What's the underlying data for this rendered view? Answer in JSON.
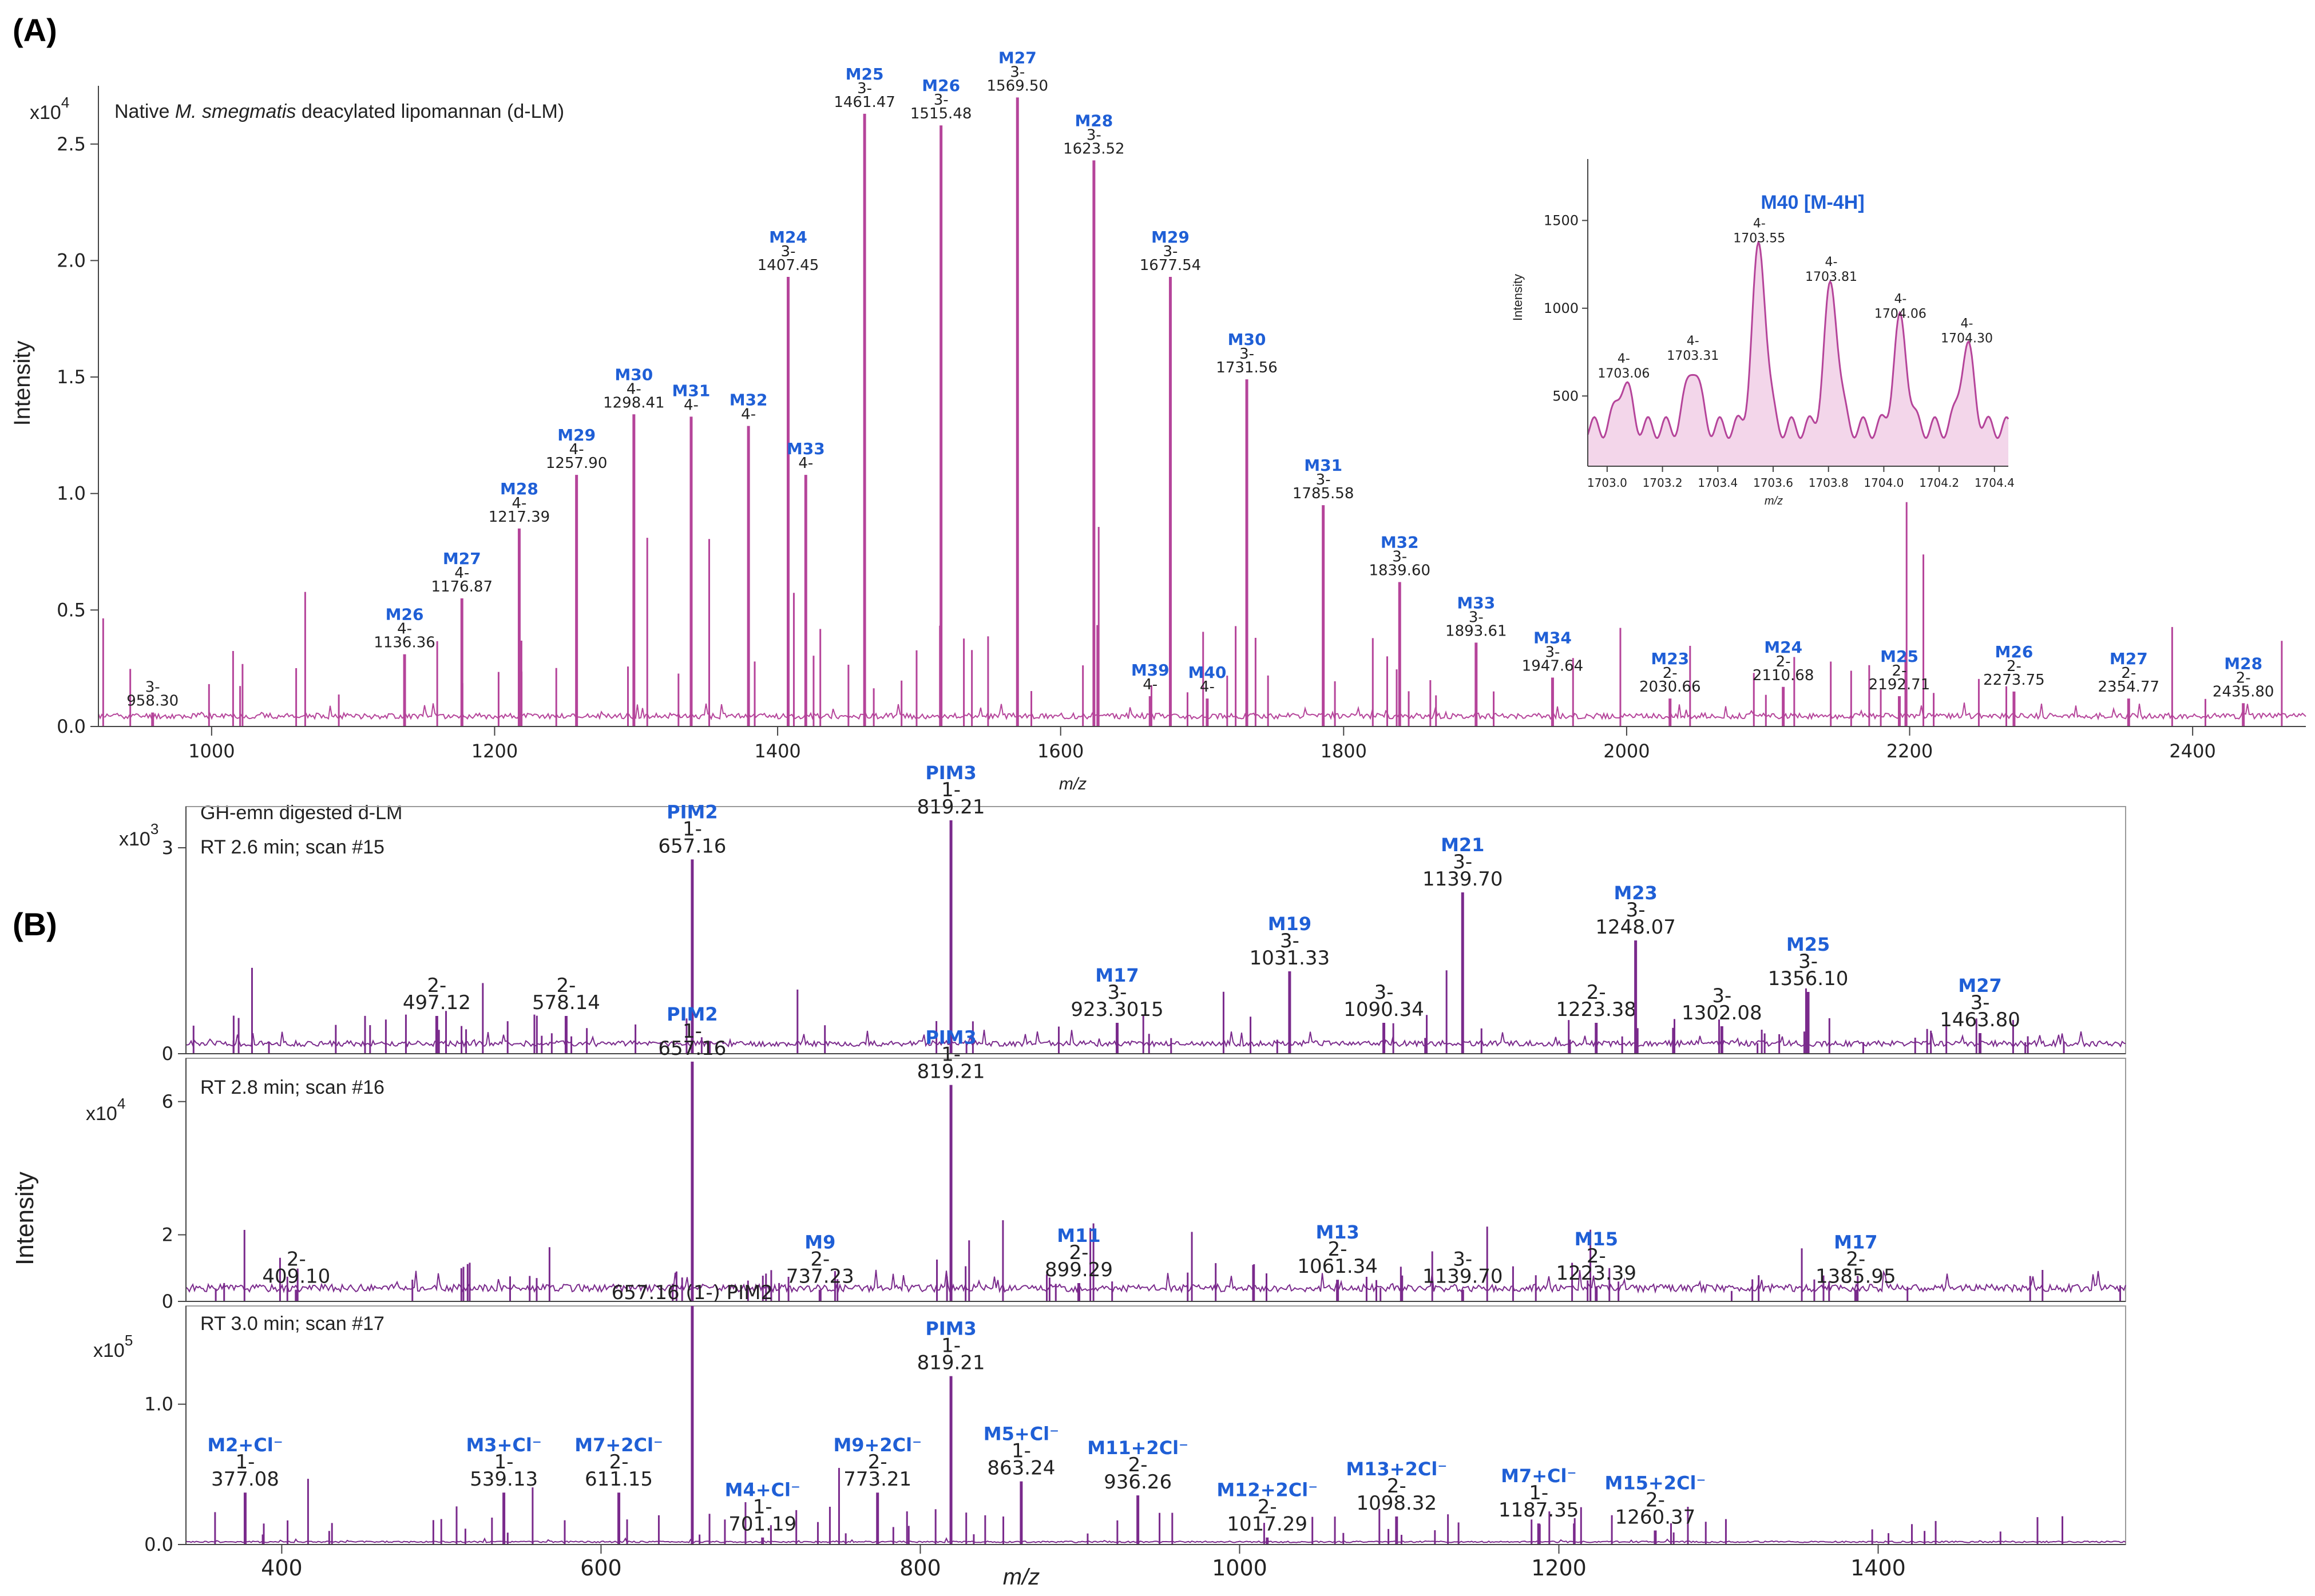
{
  "panel_a": {
    "label": "(A)",
    "title_prefix": "Native ",
    "title_italic": "M. smegmatis",
    "title_suffix": " deacylated lipomannan (d-LM)",
    "y_label": "Intensity",
    "x_label": "m/z",
    "multiplier_base": "x10",
    "multiplier_exp": "4"
  },
  "panel_b": {
    "label": "(B)",
    "y_label": "Intensity",
    "x_label": "m/z",
    "sub1": {
      "line1": "GH-emn digested d-LM",
      "line2": "RT 2.6 min; scan #15",
      "mult_base": "x10",
      "mult_exp": "3"
    },
    "sub2": {
      "line1": "RT 2.8 min; scan #16",
      "mult_base": "x10",
      "mult_exp": "4"
    },
    "sub3": {
      "line1": "RT 3.0 min; scan #17",
      "mult_base": "x10",
      "mult_exp": "5"
    }
  },
  "inset": {
    "title": "M40 [M-4H]",
    "y_label": "Intensity",
    "x_label": "m/z"
  },
  "colors": {
    "panel_a": "#b5449a",
    "panel_b": "#7a2a8c",
    "label_blue": "#1f5fd6",
    "inset_fill": "#f3d6ea"
  },
  "chart_data": [
    {
      "id": "A",
      "type": "line",
      "title": "Native M. smegmatis deacylated lipomannan (d-LM)",
      "xlabel": "m/z",
      "ylabel": "Intensity",
      "y_scale": 10000,
      "xlim": [
        920,
        2480
      ],
      "ylim": [
        0,
        2.75
      ],
      "xticks": [
        1000,
        1200,
        1400,
        1600,
        1800,
        2000,
        2200,
        2400
      ],
      "yticks": [
        0.0,
        0.5,
        1.0,
        1.5,
        2.0,
        2.5
      ],
      "ytick_labels": [
        "0.0",
        "0.5",
        "1.0",
        "1.5",
        "2.0",
        "2.5"
      ],
      "peaks": [
        {
          "mz": 958.3,
          "y": 0.06,
          "name": "",
          "charge": "3-",
          "label": "958.30"
        },
        {
          "mz": 1136.36,
          "y": 0.31,
          "name": "M26",
          "charge": "4-",
          "label": "1136.36"
        },
        {
          "mz": 1176.87,
          "y": 0.55,
          "name": "M27",
          "charge": "4-",
          "label": "1176.87"
        },
        {
          "mz": 1217.39,
          "y": 0.85,
          "name": "M28",
          "charge": "4-",
          "label": "1217.39"
        },
        {
          "mz": 1257.9,
          "y": 1.08,
          "name": "M29",
          "charge": "4-",
          "label": "1257.90"
        },
        {
          "mz": 1298.41,
          "y": 1.34,
          "name": "M30",
          "charge": "4-",
          "label": "1298.41"
        },
        {
          "mz": 1338.9,
          "y": 1.33,
          "name": "M31",
          "charge": "4-",
          "label": ""
        },
        {
          "mz": 1379.4,
          "y": 1.29,
          "name": "M32",
          "charge": "4-",
          "label": ""
        },
        {
          "mz": 1407.45,
          "y": 1.93,
          "name": "M24",
          "charge": "3-",
          "label": "1407.45"
        },
        {
          "mz": 1419.9,
          "y": 1.08,
          "name": "M33",
          "charge": "4-",
          "label": ""
        },
        {
          "mz": 1461.47,
          "y": 2.63,
          "name": "M25",
          "charge": "3-",
          "label": "1461.47"
        },
        {
          "mz": 1515.48,
          "y": 2.58,
          "name": "M26",
          "charge": "3-",
          "label": "1515.48"
        },
        {
          "mz": 1569.5,
          "y": 2.7,
          "name": "M27",
          "charge": "3-",
          "label": "1569.50"
        },
        {
          "mz": 1623.52,
          "y": 2.43,
          "name": "M28",
          "charge": "3-",
          "label": "1623.52"
        },
        {
          "mz": 1663.3,
          "y": 0.13,
          "name": "M39",
          "charge": "4-",
          "label": ""
        },
        {
          "mz": 1677.54,
          "y": 1.93,
          "name": "M29",
          "charge": "3-",
          "label": "1677.54"
        },
        {
          "mz": 1703.6,
          "y": 0.12,
          "name": "M40",
          "charge": "4-",
          "label": ""
        },
        {
          "mz": 1731.56,
          "y": 1.49,
          "name": "M30",
          "charge": "3-",
          "label": "1731.56"
        },
        {
          "mz": 1785.58,
          "y": 0.95,
          "name": "M31",
          "charge": "3-",
          "label": "1785.58"
        },
        {
          "mz": 1839.6,
          "y": 0.62,
          "name": "M32",
          "charge": "3-",
          "label": "1839.60"
        },
        {
          "mz": 1893.61,
          "y": 0.36,
          "name": "M33",
          "charge": "3-",
          "label": "1893.61"
        },
        {
          "mz": 1947.64,
          "y": 0.21,
          "name": "M34",
          "charge": "3-",
          "label": "1947.64"
        },
        {
          "mz": 2030.66,
          "y": 0.12,
          "name": "M23",
          "charge": "2-",
          "label": "2030.66"
        },
        {
          "mz": 2110.68,
          "y": 0.17,
          "name": "M24",
          "charge": "2-",
          "label": "2110.68"
        },
        {
          "mz": 2192.71,
          "y": 0.13,
          "name": "M25",
          "charge": "2-",
          "label": "2192.71"
        },
        {
          "mz": 2273.75,
          "y": 0.15,
          "name": "M26",
          "charge": "2-",
          "label": "2273.75"
        },
        {
          "mz": 2354.77,
          "y": 0.12,
          "name": "M27",
          "charge": "2-",
          "label": "2354.77"
        },
        {
          "mz": 2435.8,
          "y": 0.1,
          "name": "M28",
          "charge": "2-",
          "label": "2435.80"
        }
      ]
    },
    {
      "id": "A_inset",
      "type": "line",
      "title": "M40 [M-4H]",
      "xlabel": "m/z",
      "ylabel": "Intensity",
      "xlim": [
        1702.93,
        1704.45
      ],
      "ylim": [
        100,
        1850
      ],
      "xticks": [
        1703.0,
        1703.2,
        1703.4,
        1703.6,
        1703.8,
        1704.0,
        1704.2,
        1704.4
      ],
      "xtick_labels": [
        "1703.0",
        "1703.2",
        "1703.4",
        "1703.6",
        "1703.8",
        "1704.0",
        "1704.2",
        "1704.4"
      ],
      "yticks": [
        500,
        1000,
        1500
      ],
      "peaks": [
        {
          "mz": 1703.06,
          "y": 560,
          "charge": "4-",
          "label": "1703.06"
        },
        {
          "mz": 1703.31,
          "y": 660,
          "charge": "4-",
          "label": "1703.31"
        },
        {
          "mz": 1703.55,
          "y": 1330,
          "charge": "4-",
          "label": "1703.55"
        },
        {
          "mz": 1703.81,
          "y": 1110,
          "charge": "4-",
          "label": "1703.81"
        },
        {
          "mz": 1704.06,
          "y": 900,
          "charge": "4-",
          "label": "1704.06"
        },
        {
          "mz": 1704.3,
          "y": 760,
          "charge": "4-",
          "label": "1704.30"
        }
      ]
    },
    {
      "id": "B1",
      "type": "line",
      "title": "GH-emn digested d-LM / RT 2.6 min; scan #15",
      "xlabel": "m/z",
      "ylabel": "Intensity",
      "y_scale": 1000,
      "xlim": [
        340,
        1555
      ],
      "ylim": [
        0,
        3.6
      ],
      "yticks": [
        0,
        3
      ],
      "ytick_labels": [
        "0",
        "3"
      ],
      "peaks": [
        {
          "mz": 497.12,
          "y": 0.55,
          "name": "",
          "charge": "2-",
          "label": "497.12"
        },
        {
          "mz": 578.14,
          "y": 0.55,
          "name": "",
          "charge": "2-",
          "label": "578.14"
        },
        {
          "mz": 657.16,
          "y": 2.83,
          "name": "PIM2",
          "charge": "1-",
          "label": "657.16"
        },
        {
          "mz": 819.21,
          "y": 3.4,
          "name": "PIM3",
          "charge": "1-",
          "label": "819.21"
        },
        {
          "mz": 923.3,
          "y": 0.45,
          "name": "M17",
          "charge": "3-",
          "label": "923.3015"
        },
        {
          "mz": 1031.33,
          "y": 1.2,
          "name": "M19",
          "charge": "3-",
          "label": "1031.33"
        },
        {
          "mz": 1090.34,
          "y": 0.45,
          "name": "",
          "charge": "3-",
          "label": "1090.34"
        },
        {
          "mz": 1139.7,
          "y": 2.35,
          "name": "M21",
          "charge": "3-",
          "label": "1139.70"
        },
        {
          "mz": 1223.38,
          "y": 0.45,
          "name": "",
          "charge": "2-",
          "label": "1223.38"
        },
        {
          "mz": 1248.07,
          "y": 1.65,
          "name": "M23",
          "charge": "3-",
          "label": "1248.07"
        },
        {
          "mz": 1302.08,
          "y": 0.4,
          "name": "",
          "charge": "3-",
          "label": "1302.08"
        },
        {
          "mz": 1356.1,
          "y": 0.9,
          "name": "M25",
          "charge": "3-",
          "label": "1356.10"
        },
        {
          "mz": 1463.8,
          "y": 0.3,
          "name": "M27",
          "charge": "3-",
          "label": "1463.80"
        }
      ]
    },
    {
      "id": "B2",
      "type": "line",
      "title": "RT 2.8 min; scan #16",
      "xlabel": "m/z",
      "ylabel": "Intensity",
      "y_scale": 10000,
      "xlim": [
        340,
        1555
      ],
      "ylim": [
        0,
        7.3
      ],
      "yticks": [
        0,
        2,
        6
      ],
      "ytick_labels": [
        "0",
        "2",
        "6"
      ],
      "peaks": [
        {
          "mz": 409.1,
          "y": 0.35,
          "name": "",
          "charge": "2-",
          "label": "409.10"
        },
        {
          "mz": 657.16,
          "y": 7.2,
          "name": "PIM2",
          "charge": "1-",
          "label": "657.16"
        },
        {
          "mz": 737.23,
          "y": 0.35,
          "name": "M9",
          "charge": "2-",
          "label": "737.23"
        },
        {
          "mz": 819.21,
          "y": 6.5,
          "name": "PIM3",
          "charge": "1-",
          "label": "819.21"
        },
        {
          "mz": 899.29,
          "y": 0.55,
          "name": "M11",
          "charge": "2-",
          "label": "899.29"
        },
        {
          "mz": 1061.34,
          "y": 0.65,
          "name": "M13",
          "charge": "2-",
          "label": "1061.34"
        },
        {
          "mz": 1139.7,
          "y": 0.35,
          "name": "",
          "charge": "3-",
          "label": "1139.70"
        },
        {
          "mz": 1223.39,
          "y": 0.45,
          "name": "M15",
          "charge": "2-",
          "label": "1223.39"
        },
        {
          "mz": 1385.95,
          "y": 0.35,
          "name": "M17",
          "charge": "2-",
          "label": "1385.95"
        }
      ]
    },
    {
      "id": "B3",
      "type": "line",
      "title": "RT 3.0 min; scan #17",
      "xlabel": "m/z",
      "ylabel": "Intensity",
      "y_scale": 100000,
      "xlim": [
        340,
        1555
      ],
      "ylim": [
        0,
        1.7
      ],
      "xticks": [
        400,
        600,
        800,
        1000,
        1200,
        1400
      ],
      "yticks": [
        0.0,
        1.0
      ],
      "ytick_labels": [
        "0.0",
        "1.0"
      ],
      "peaks": [
        {
          "mz": 377.08,
          "y": 0.37,
          "name": "M2+Cl⁻",
          "charge": "1-",
          "label": "377.08"
        },
        {
          "mz": 539.13,
          "y": 0.37,
          "name": "M3+Cl⁻",
          "charge": "1-",
          "label": "539.13"
        },
        {
          "mz": 611.15,
          "y": 0.37,
          "name": "M7+2Cl⁻",
          "charge": "2-",
          "label": "611.15"
        },
        {
          "mz": 657.16,
          "y": 1.7,
          "name": "PIM2",
          "charge": "",
          "label": "657.16 (1-) PIM2"
        },
        {
          "mz": 701.19,
          "y": 0.05,
          "name": "M4+Cl⁻",
          "charge": "1-",
          "label": "701.19"
        },
        {
          "mz": 773.21,
          "y": 0.37,
          "name": "M9+2Cl⁻",
          "charge": "2-",
          "label": "773.21"
        },
        {
          "mz": 819.21,
          "y": 1.2,
          "name": "PIM3",
          "charge": "1-",
          "label": "819.21"
        },
        {
          "mz": 863.24,
          "y": 0.45,
          "name": "M5+Cl⁻",
          "charge": "1-",
          "label": "863.24"
        },
        {
          "mz": 936.26,
          "y": 0.35,
          "name": "M11+2Cl⁻",
          "charge": "2-",
          "label": "936.26"
        },
        {
          "mz": 1017.29,
          "y": 0.05,
          "name": "M12+2Cl⁻",
          "charge": "2-",
          "label": "1017.29"
        },
        {
          "mz": 1098.32,
          "y": 0.2,
          "name": "M13+2Cl⁻",
          "charge": "2-",
          "label": "1098.32"
        },
        {
          "mz": 1187.35,
          "y": 0.15,
          "name": "M7+Cl⁻",
          "charge": "1-",
          "label": "1187.35"
        },
        {
          "mz": 1260.37,
          "y": 0.1,
          "name": "M15+2Cl⁻",
          "charge": "2-",
          "label": "1260.37"
        }
      ]
    }
  ]
}
